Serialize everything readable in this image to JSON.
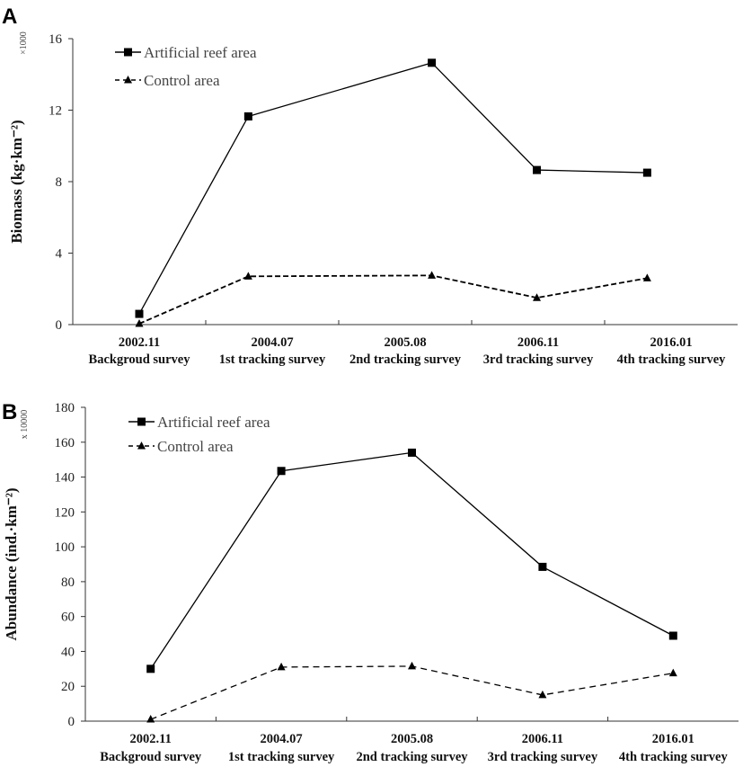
{
  "chart_data": [
    {
      "panel": "A",
      "type": "line",
      "categories": [
        "2002.11",
        "2004.07",
        "2005.08",
        "2006.11",
        "2016.01"
      ],
      "category_sublabels": [
        "Backgroud survey",
        "1st tracking survey",
        "2nd tracking survey",
        "3rd tracking survey",
        "4th tracking survey"
      ],
      "ylabel": "Biomass (kg·km⁻²)",
      "y_multiplier": "×1000",
      "ylim": [
        0,
        16
      ],
      "yticks": [
        0,
        4,
        8,
        12,
        16
      ],
      "series": [
        {
          "name": "Artificial reef area",
          "marker": "square",
          "dash": "solid",
          "values": [
            0.6,
            11.65,
            14.65,
            8.65,
            8.5
          ]
        },
        {
          "name": "Control area",
          "marker": "triangle",
          "dash": "dashed",
          "values": [
            0.05,
            2.7,
            2.75,
            1.5,
            2.6
          ]
        }
      ],
      "legend": "top-left"
    },
    {
      "panel": "B",
      "type": "line",
      "categories": [
        "2002.11",
        "2004.07",
        "2005.08",
        "2006.11",
        "2016.01"
      ],
      "category_sublabels": [
        "Backgroud survey",
        "1st tracking survey",
        "2nd tracking survey",
        "3rd tracking survey",
        "4th tracking survey"
      ],
      "ylabel": "Abundance (ind.·km⁻²)",
      "y_multiplier": "x 10000",
      "ylim": [
        0,
        180
      ],
      "yticks": [
        0,
        20,
        40,
        60,
        80,
        100,
        120,
        140,
        160,
        180
      ],
      "series": [
        {
          "name": "Artificial reef area",
          "marker": "square",
          "dash": "solid",
          "values": [
            30,
            143.5,
            154,
            88.5,
            49
          ]
        },
        {
          "name": "Control area",
          "marker": "triangle",
          "dash": "dashed",
          "values": [
            1,
            31,
            31.5,
            15,
            27.5
          ]
        }
      ],
      "legend": "top-left"
    }
  ]
}
